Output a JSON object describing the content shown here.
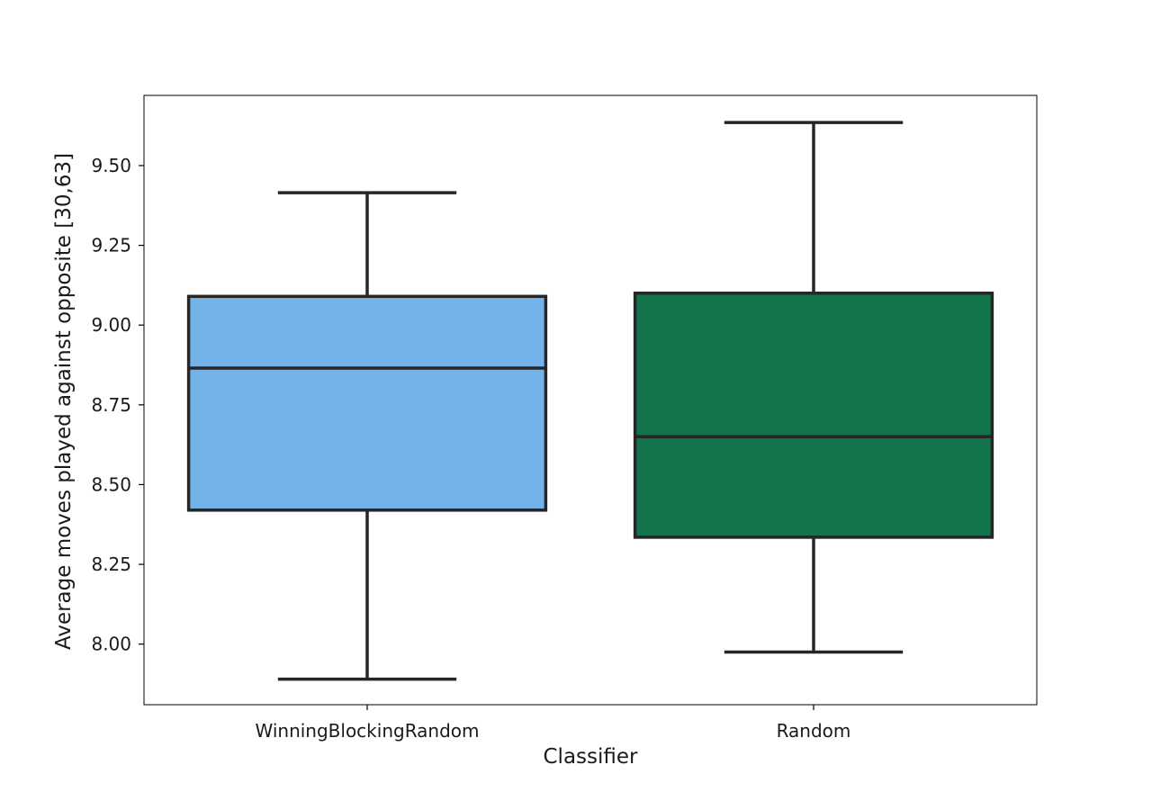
{
  "chart_data": {
    "type": "box",
    "title": "",
    "xlabel": "Classifier",
    "ylabel": "Average moves played against opposite [30,63]",
    "ylim": [
      7.81,
      9.72
    ],
    "yticks": [
      8.0,
      8.25,
      8.5,
      8.75,
      9.0,
      9.25,
      9.5
    ],
    "ytick_labels": [
      "8.00",
      "8.25",
      "8.50",
      "8.75",
      "9.00",
      "9.25",
      "9.50"
    ],
    "grid": false,
    "categories": [
      "WinningBlockingRandom",
      "Random"
    ],
    "boxes": [
      {
        "category": "WinningBlockingRandom",
        "whisker_low": 7.89,
        "q1": 8.42,
        "median": 8.865,
        "q3": 9.09,
        "whisker_high": 9.415,
        "color": "#74b3ea"
      },
      {
        "category": "Random",
        "whisker_low": 7.975,
        "q1": 8.335,
        "median": 8.65,
        "q3": 9.1,
        "whisker_high": 9.635,
        "color": "#13744b"
      }
    ],
    "line_color": "#262626"
  }
}
